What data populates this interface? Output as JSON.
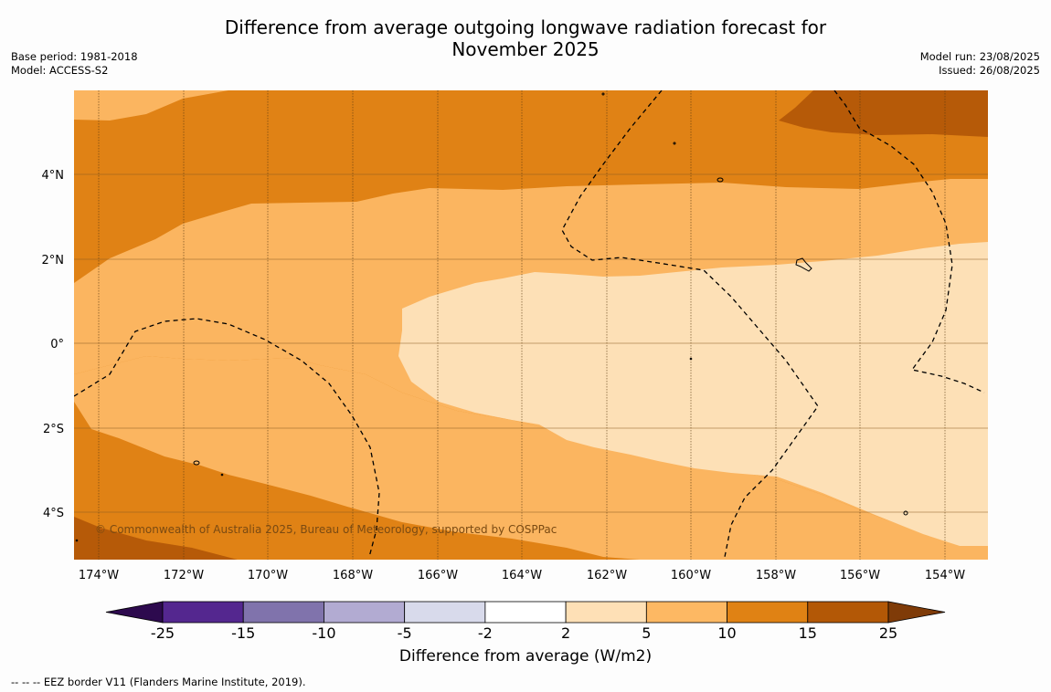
{
  "title_line1": "Difference from average outgoing longwave radiation forecast for",
  "title_line2": "November 2025",
  "base_period": "Base period: 1981-2018",
  "model": "Model: ACCESS-S2",
  "model_run": "Model run: 23/08/2025",
  "issued": "Issued: 26/08/2025",
  "copyright": "© Commonwealth of Australia 2025, Bureau of Meteorology, supported by COSPPac",
  "lat_labels": [
    "4°N",
    "2°N",
    "0°",
    "2°S",
    "4°S"
  ],
  "lon_labels": [
    "174°W",
    "172°W",
    "170°W",
    "168°W",
    "166°W",
    "164°W",
    "162°W",
    "160°W",
    "158°W",
    "156°W",
    "154°W"
  ],
  "colorbar": {
    "title": "Difference from average (W/m2)",
    "ticks": [
      "-25",
      "-15",
      "-10",
      "-5",
      "-2",
      "2",
      "5",
      "10",
      "15",
      "25"
    ],
    "colors": [
      "#2d0a4e",
      "#54278f",
      "#8073ac",
      "#b2abd2",
      "#d8daeb",
      "#ffffff",
      "#fee0b6",
      "#fdb863",
      "#e08214",
      "#b35806",
      "#7f3b08"
    ]
  },
  "footnote": "--  --  -- EEZ border V11 (Flanders Marine Institute, 2019).",
  "map_colors": {
    "c5_10": "#fbb560",
    "c2_5": "#fde0b6",
    "c10_15": "#e08215",
    "c15_25": "#b65a08"
  }
}
